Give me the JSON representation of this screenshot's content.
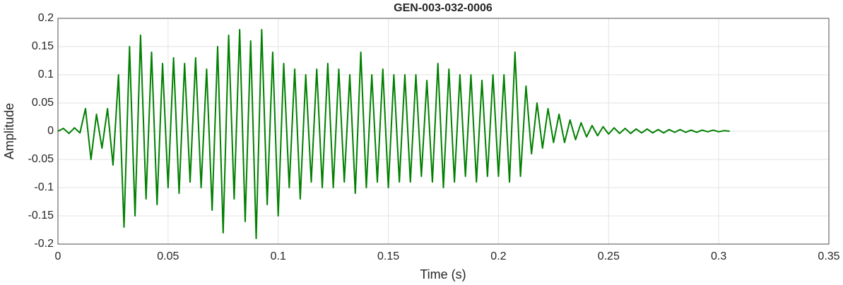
{
  "chart_data": {
    "type": "line",
    "title": "GEN-003-032-0006",
    "xlabel": "Time (s)",
    "ylabel": "Amplitude",
    "x": [
      0,
      0.0025,
      0.005,
      0.0075,
      0.01,
      0.0125,
      0.015,
      0.0175,
      0.02,
      0.0225,
      0.025,
      0.0275,
      0.03,
      0.0325,
      0.035,
      0.0375,
      0.04,
      0.0425,
      0.045,
      0.0475,
      0.05,
      0.0525,
      0.055,
      0.0575,
      0.06,
      0.0625,
      0.065,
      0.0675,
      0.07,
      0.0725,
      0.075,
      0.0775,
      0.08,
      0.0825,
      0.085,
      0.0875,
      0.09,
      0.0925,
      0.095,
      0.0975,
      0.1,
      0.1025,
      0.105,
      0.1075,
      0.11,
      0.1125,
      0.115,
      0.1175,
      0.12,
      0.1225,
      0.125,
      0.1275,
      0.13,
      0.1325,
      0.135,
      0.1375,
      0.14,
      0.1425,
      0.145,
      0.1475,
      0.15,
      0.1525,
      0.155,
      0.1575,
      0.16,
      0.1625,
      0.165,
      0.1675,
      0.17,
      0.1725,
      0.175,
      0.1775,
      0.18,
      0.1825,
      0.185,
      0.1875,
      0.19,
      0.1925,
      0.195,
      0.1975,
      0.2,
      0.2025,
      0.205,
      0.2075,
      0.21,
      0.2125,
      0.215,
      0.2175,
      0.22,
      0.2225,
      0.225,
      0.2275,
      0.23,
      0.2325,
      0.235,
      0.2375,
      0.24,
      0.2425,
      0.245,
      0.2475,
      0.25,
      0.2525,
      0.255,
      0.2575,
      0.26,
      0.2625,
      0.265,
      0.2675,
      0.27,
      0.2725,
      0.275,
      0.2775,
      0.28,
      0.2825,
      0.285,
      0.2875,
      0.29,
      0.2925,
      0.295,
      0.2975,
      0.3,
      0.3025,
      0.305
    ],
    "values": [
      0,
      0.005,
      -0.004,
      0.006,
      -0.003,
      0.04,
      -0.05,
      0.03,
      -0.03,
      0.04,
      -0.06,
      0.1,
      -0.17,
      0.15,
      -0.15,
      0.17,
      -0.12,
      0.14,
      -0.13,
      0.12,
      -0.1,
      0.13,
      -0.11,
      0.12,
      -0.09,
      0.13,
      -0.1,
      0.11,
      -0.14,
      0.15,
      -0.18,
      0.17,
      -0.12,
      0.18,
      -0.16,
      0.16,
      -0.19,
      0.18,
      -0.13,
      0.14,
      -0.15,
      0.12,
      -0.1,
      0.11,
      -0.12,
      0.1,
      -0.09,
      0.11,
      -0.1,
      0.12,
      -0.1,
      0.11,
      -0.09,
      0.1,
      -0.11,
      0.14,
      -0.1,
      0.1,
      -0.09,
      0.11,
      -0.1,
      0.1,
      -0.09,
      0.1,
      -0.09,
      0.1,
      -0.08,
      0.09,
      -0.09,
      0.12,
      -0.1,
      0.11,
      -0.09,
      0.1,
      -0.08,
      0.1,
      -0.09,
      0.09,
      -0.08,
      0.1,
      -0.08,
      0.1,
      -0.09,
      0.14,
      -0.08,
      0.08,
      -0.04,
      0.05,
      -0.03,
      0.04,
      -0.02,
      0.03,
      -0.02,
      0.02,
      -0.015,
      0.015,
      -0.01,
      0.01,
      -0.008,
      0.008,
      -0.005,
      0.006,
      -0.004,
      0.005,
      -0.004,
      0.004,
      -0.003,
      0.004,
      -0.003,
      0.003,
      -0.003,
      0.003,
      -0.002,
      0.003,
      -0.002,
      0.002,
      -0.002,
      0.002,
      -0.001,
      0.002,
      -0.001,
      0.001,
      0
    ],
    "color": "#008000",
    "xlim": [
      0,
      0.35
    ],
    "xticks": [
      0,
      0.05,
      0.1,
      0.15,
      0.2,
      0.25,
      0.3,
      0.35
    ],
    "ylim": [
      -0.2,
      0.2
    ],
    "yticks": [
      -0.2,
      -0.15,
      -0.1,
      -0.05,
      0,
      0.05,
      0.1,
      0.15,
      0.2
    ],
    "grid": true
  }
}
